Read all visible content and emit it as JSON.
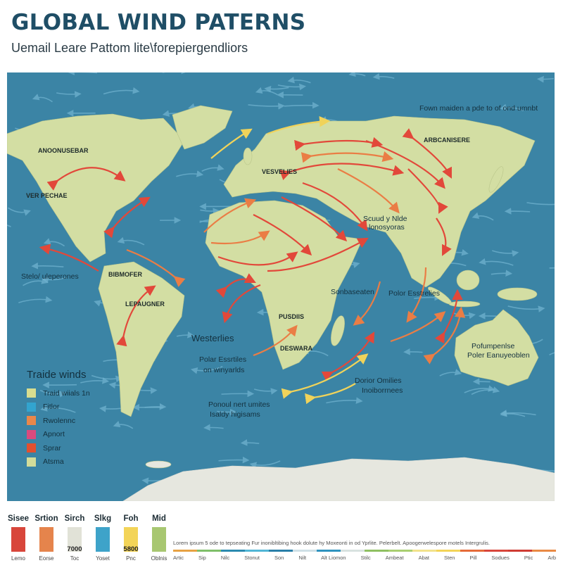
{
  "header": {
    "title": "GLOBAL WIND PATERNS",
    "subtitle": "Uemail Leare Pattom lite\\forepiergendliors"
  },
  "colors": {
    "ocean": "#3b84a5",
    "land": "#d3dea3",
    "antarctica": "#e6e7df",
    "arrow_red": "#e2483a",
    "arrow_orange": "#ea7d45",
    "arrow_yellow": "#f0d35a",
    "stream_blue": "#6fb2cf",
    "title": "#1f4e66"
  },
  "map": {
    "labels": {
      "north_america": "ANOONUSEBAR",
      "usa": "VER PECHAE",
      "central": "Stelo/ uleperones",
      "caribbean": "BIBMOFER",
      "south_america": "LEPAUGNER",
      "europe": "VESVELIES",
      "asia": "ARBCANISERE",
      "top_right": "Fown maiden a pde to of ond umnbt",
      "india_1": "Scuud y Nlde",
      "india_2": "lonosyoras",
      "africa_east": "Sonbaseaten",
      "polar_e": "Polor Esstrelies",
      "africa": "PUSDIIS",
      "south_africa": "DESWARA",
      "westerlies": "Westerlies",
      "polar_1": "Polar Essrtiles",
      "polar_2": "on winyarlds",
      "dorior_1": "Dorior Omilies",
      "dorior_2": "Inoiborrnees",
      "ponoul_1": "Ponoul nert umites",
      "ponoul_2": "Isaldy higisams",
      "australia_1": "Pofumpenlse",
      "australia_2": "Poler Eanuyeoblen"
    },
    "legend": {
      "title": "Traide winds",
      "items": [
        {
          "label": "Traid wiials  1n",
          "color": "#d8dd8f"
        },
        {
          "label": "Fitlor",
          "color": "#32a4cf"
        },
        {
          "label": "Rwolennc",
          "color": "#e9874a"
        },
        {
          "label": "Apnort",
          "color": "#d94a7e"
        },
        {
          "label": "Sprar",
          "color": "#e2502f"
        },
        {
          "label": "Atsma",
          "color": "#d2dc9a"
        }
      ]
    }
  },
  "swatches": [
    {
      "header": "Sisee",
      "color": "#d8463b",
      "footer": "Lemo",
      "value": ""
    },
    {
      "header": "Srtion",
      "color": "#e5844c",
      "footer": "Eorse",
      "value": ""
    },
    {
      "header": "Sirch",
      "color": "#e1e2d7",
      "footer": "Toc",
      "value": "7000"
    },
    {
      "header": "Slkg",
      "color": "#3ea3c9",
      "footer": "Yoset",
      "value": ""
    },
    {
      "header": "Foh",
      "color": "#f3d458",
      "footer": "Pnc",
      "value": "5800"
    },
    {
      "header": "Mid",
      "color": "#a8c771",
      "footer": "Oblnis",
      "value": ""
    }
  ],
  "strip": {
    "text": "Lorem ipsum 5 ode to tepseating Fur inonibltibing hook dolute hy Moxeonti in od Yprlite. Pelerbelt. Apoogerwelespore motels Intergrulis.",
    "colors": [
      "#e7a244",
      "#7fbf6a",
      "#2c8bb0",
      "#52b6d6",
      "#2a7fa8",
      "#cfe0e6",
      "#2f93be",
      "#d8e2e0",
      "#8fc062",
      "#a9cf71",
      "#f2e28c",
      "#f3d458",
      "#e56b3a",
      "#d8463b",
      "#cf3b33",
      "#e98a45"
    ],
    "labels": [
      "Artic",
      "Sip",
      "Nilc",
      "Stonut",
      "Son",
      "Nilt",
      "Alt Liomon",
      "Stilc",
      "Ambeat",
      "Abat",
      "Sten",
      "Pill",
      "Sodues",
      "Ptic",
      "Arb"
    ]
  }
}
